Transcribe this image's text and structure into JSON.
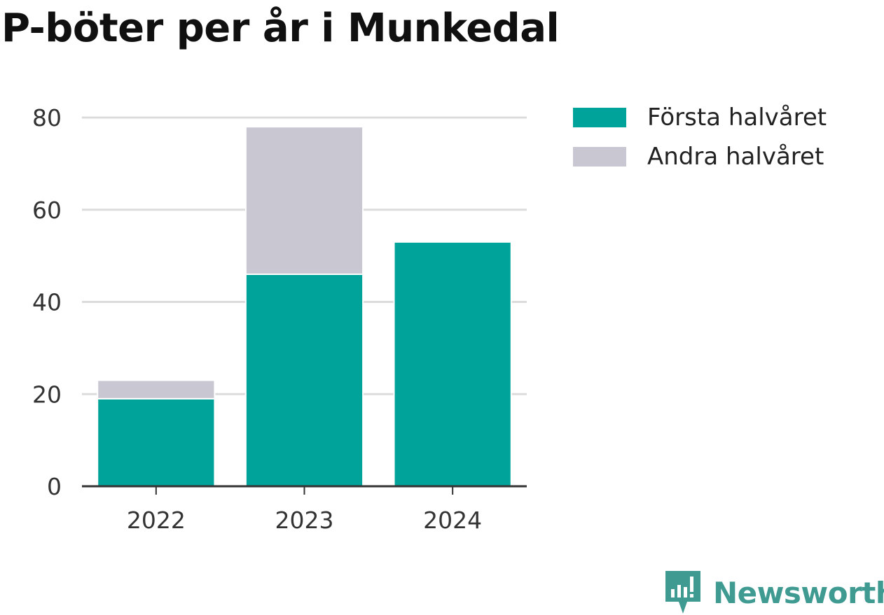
{
  "title": "P-böter per år i Munkedal",
  "chart_data": {
    "type": "bar",
    "stacked": true,
    "title": "P-böter per år i Munkedal",
    "categories": [
      "2022",
      "2023",
      "2024"
    ],
    "series": [
      {
        "name": "Första halvåret",
        "color": "#00a39a",
        "values": [
          19,
          46,
          53
        ]
      },
      {
        "name": "Andra halvåret",
        "color": "#c8c7d2",
        "values": [
          4,
          32,
          0
        ]
      }
    ],
    "ylim": [
      0,
      80
    ],
    "yticks": [
      0,
      20,
      40,
      60,
      80
    ],
    "grid": true,
    "legend_position": "top-right",
    "xlabel": "",
    "ylabel": ""
  },
  "brand": {
    "name": "Newsworthy",
    "icon": "newsworthy-logo-icon",
    "color": "#3f9a92"
  }
}
